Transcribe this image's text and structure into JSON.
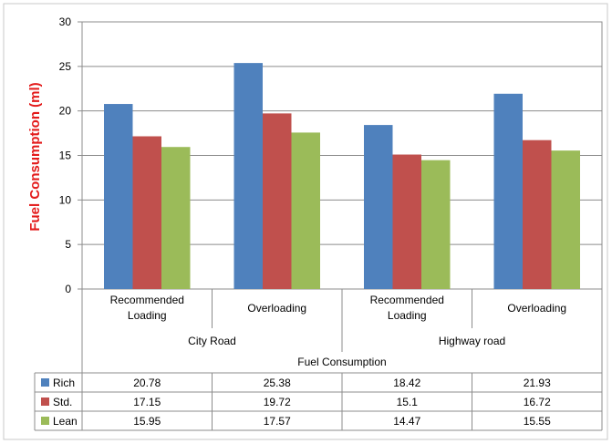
{
  "chart_data": {
    "type": "bar",
    "title": "",
    "xlabel": "Fuel Consumption",
    "ylabel": "Fuel Consumption (ml)",
    "ylim": [
      0,
      30
    ],
    "yticks": [
      0,
      5,
      10,
      15,
      20,
      25,
      30
    ],
    "grid": true,
    "legend": "table-left",
    "groups": [
      {
        "label": "City Road",
        "categories": [
          "Recommended Loading",
          "Overloading"
        ]
      },
      {
        "label": "Highway road",
        "categories": [
          "Recommended Loading",
          "Overloading"
        ]
      }
    ],
    "categories": [
      "Recommended Loading",
      "Overloading",
      "Recommended Loading",
      "Overloading"
    ],
    "series": [
      {
        "name": "Rich",
        "color": "#4f81bd",
        "values": [
          20.78,
          25.38,
          18.42,
          21.93
        ],
        "labels": [
          "20.78",
          "25.38",
          "18.42",
          "21.93"
        ]
      },
      {
        "name": "Std.",
        "color": "#c0504d",
        "values": [
          17.15,
          19.72,
          15.1,
          16.72
        ],
        "labels": [
          "17.15",
          "19.72",
          "15.1",
          "16.72"
        ]
      },
      {
        "name": "Lean",
        "color": "#9bbb59",
        "values": [
          15.95,
          17.57,
          14.47,
          15.55
        ],
        "labels": [
          "15.95",
          "17.57",
          "14.47",
          "15.55"
        ]
      }
    ]
  }
}
